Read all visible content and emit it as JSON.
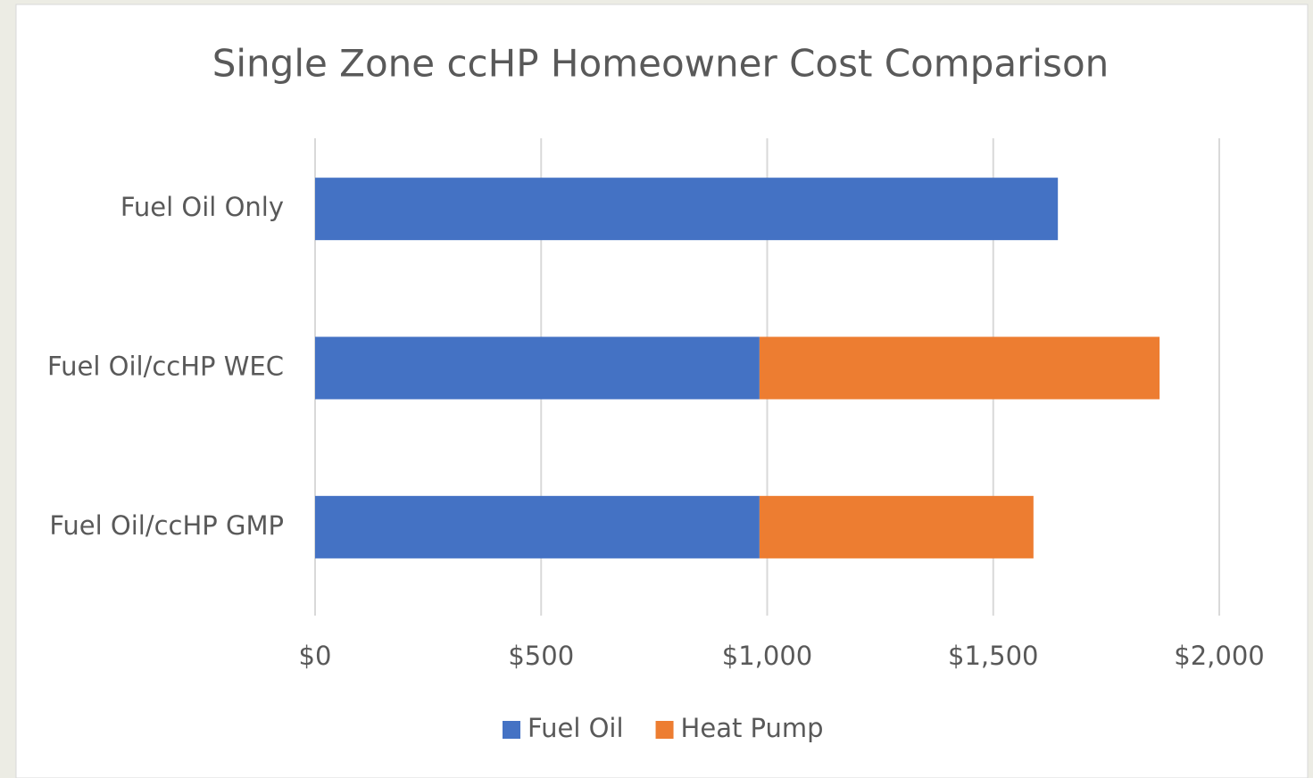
{
  "chart_data": {
    "type": "stacked-bar-horizontal",
    "title": "Single Zone ccHP Homeowner Cost Comparison",
    "categories": [
      "Fuel Oil Only",
      "Fuel Oil/ccHP WEC",
      "Fuel Oil/ccHP GMP"
    ],
    "series": [
      {
        "name": "Fuel Oil",
        "color": "#4472c4",
        "values": [
          1643,
          983,
          983
        ]
      },
      {
        "name": "Heat Pump",
        "color": "#ed7d31",
        "values": [
          null,
          885,
          606
        ]
      }
    ],
    "xlim": [
      0,
      2000
    ],
    "xticks": [
      {
        "value": 0,
        "label": "$0"
      },
      {
        "value": 500,
        "label": "$500"
      },
      {
        "value": 1000,
        "label": "$1,000"
      },
      {
        "value": 1500,
        "label": "$1,500"
      },
      {
        "value": 2000,
        "label": "$2,000"
      }
    ],
    "grid": true,
    "legend": "bottom"
  }
}
